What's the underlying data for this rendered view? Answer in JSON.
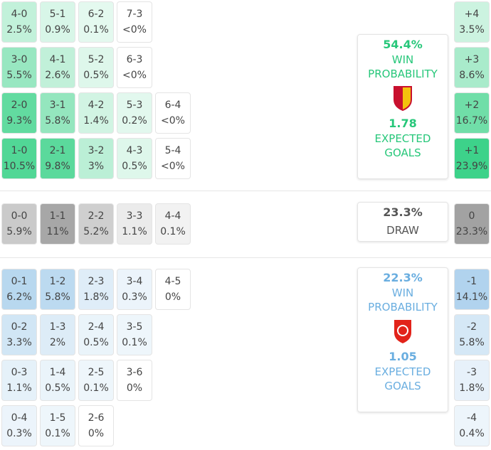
{
  "home": {
    "rows": [
      [
        {
          "score": "4-0",
          "prob": "2.5%"
        },
        {
          "score": "5-1",
          "prob": "0.9%"
        },
        {
          "score": "6-2",
          "prob": "0.1%"
        },
        {
          "score": "7-3",
          "prob": "<0%"
        }
      ],
      [
        {
          "score": "3-0",
          "prob": "5.5%"
        },
        {
          "score": "4-1",
          "prob": "2.6%"
        },
        {
          "score": "5-2",
          "prob": "0.5%"
        },
        {
          "score": "6-3",
          "prob": "<0%"
        }
      ],
      [
        {
          "score": "2-0",
          "prob": "9.3%"
        },
        {
          "score": "3-1",
          "prob": "5.8%"
        },
        {
          "score": "4-2",
          "prob": "1.4%"
        },
        {
          "score": "5-3",
          "prob": "0.2%"
        },
        {
          "score": "6-4",
          "prob": "<0%"
        }
      ],
      [
        {
          "score": "1-0",
          "prob": "10.5%"
        },
        {
          "score": "2-1",
          "prob": "9.8%"
        },
        {
          "score": "3-2",
          "prob": "3%"
        },
        {
          "score": "4-3",
          "prob": "0.5%"
        },
        {
          "score": "5-4",
          "prob": "<0%"
        }
      ]
    ],
    "margins": [
      {
        "diff": "+4",
        "prob": "3.5%"
      },
      {
        "diff": "+3",
        "prob": "8.6%"
      },
      {
        "diff": "+2",
        "prob": "16.7%"
      },
      {
        "diff": "+1",
        "prob": "23.9%"
      }
    ],
    "summary": {
      "win_pct": "54.4%",
      "win_label": "WIN PROBABILITY",
      "xg": "1.78",
      "xg_label": "EXPECTED GOALS"
    }
  },
  "draw": {
    "rows": [
      [
        {
          "score": "0-0",
          "prob": "5.9%"
        },
        {
          "score": "1-1",
          "prob": "11%"
        },
        {
          "score": "2-2",
          "prob": "5.2%"
        },
        {
          "score": "3-3",
          "prob": "1.1%"
        },
        {
          "score": "4-4",
          "prob": "0.1%"
        }
      ]
    ],
    "margins": [
      {
        "diff": "0",
        "prob": "23.3%"
      }
    ],
    "summary": {
      "pct": "23.3%",
      "label": "DRAW"
    }
  },
  "away": {
    "rows": [
      [
        {
          "score": "0-1",
          "prob": "6.2%"
        },
        {
          "score": "1-2",
          "prob": "5.8%"
        },
        {
          "score": "2-3",
          "prob": "1.8%"
        },
        {
          "score": "3-4",
          "prob": "0.3%"
        },
        {
          "score": "4-5",
          "prob": "0%"
        }
      ],
      [
        {
          "score": "0-2",
          "prob": "3.3%"
        },
        {
          "score": "1-3",
          "prob": "2%"
        },
        {
          "score": "2-4",
          "prob": "0.5%"
        },
        {
          "score": "3-5",
          "prob": "0.1%"
        }
      ],
      [
        {
          "score": "0-3",
          "prob": "1.1%"
        },
        {
          "score": "1-4",
          "prob": "0.5%"
        },
        {
          "score": "2-5",
          "prob": "0.1%"
        },
        {
          "score": "3-6",
          "prob": "0%"
        }
      ],
      [
        {
          "score": "0-4",
          "prob": "0.3%"
        },
        {
          "score": "1-5",
          "prob": "0.1%"
        },
        {
          "score": "2-6",
          "prob": "0%"
        }
      ]
    ],
    "margins": [
      {
        "diff": "-1",
        "prob": "14.1%"
      },
      {
        "diff": "-2",
        "prob": "5.8%"
      },
      {
        "diff": "-3",
        "prob": "1.8%"
      },
      {
        "diff": "-4",
        "prob": "0.4%"
      }
    ],
    "summary": {
      "win_pct": "22.3%",
      "win_label": "WIN PROBABILITY",
      "xg": "1.05",
      "xg_label": "EXPECTED GOALS"
    }
  }
}
